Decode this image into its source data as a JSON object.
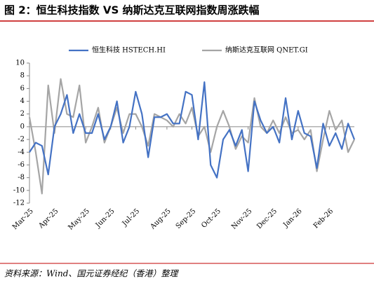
{
  "chart_data": {
    "type": "line",
    "title": "图 2：恒生科技指数 VS 纳斯达克互联网指数周涨跌幅",
    "source": "资料来源：Wind、国元证券经纪（香港）整理",
    "categories": [
      "Mar-25",
      null,
      null,
      null,
      "Apr-25",
      null,
      null,
      null,
      null,
      "May-25",
      null,
      null,
      null,
      "Jun-25",
      null,
      null,
      null,
      "Jul-25",
      null,
      null,
      null,
      null,
      "Aug-25",
      null,
      null,
      null,
      "Sep-25",
      null,
      null,
      null,
      "Oct-25",
      null,
      null,
      null,
      null,
      "Nov-25",
      null,
      null,
      null,
      "Dec-25",
      null,
      null,
      null,
      "Jan-26",
      null,
      null,
      null,
      null,
      "Feb-26",
      null,
      null,
      null,
      null
    ],
    "series": [
      {
        "name": "恒生科技 HSTECH.HI",
        "color": "#4472c4",
        "values": [
          -4,
          -2.5,
          -3,
          -7.5,
          0,
          2,
          5,
          -1,
          2,
          -1,
          -1,
          2,
          -2,
          0,
          4,
          -2.5,
          0,
          5.5,
          2,
          -4.8,
          1.5,
          1.5,
          2,
          0.5,
          0.5,
          5.5,
          5,
          -2,
          7,
          -6,
          -8,
          -2,
          -0.5,
          -3,
          -0.5,
          -7,
          4,
          1,
          -1,
          0,
          -2.5,
          4.5,
          -2,
          2.5,
          -1,
          -1.5,
          -6.5,
          0.5,
          -3,
          -1,
          -3.5,
          0.5,
          -2
        ]
      },
      {
        "name": "纳斯达克互联网 QNET.GI",
        "color": "#a5a5a5",
        "values": [
          1.5,
          -4,
          -10.5,
          6.5,
          -1,
          7.5,
          2,
          1.5,
          6.5,
          -2.5,
          0,
          3,
          -2.5,
          0,
          3,
          -1,
          2,
          2,
          0,
          -3,
          2,
          1.5,
          1,
          0,
          2,
          0.5,
          3,
          -1.5,
          0,
          -4,
          0,
          2.5,
          0,
          -3.5,
          -1.5,
          -2.5,
          4.5,
          0,
          -1,
          1,
          -1,
          1.5,
          -1,
          -0.5,
          -2,
          -0.5,
          -7,
          -2,
          2.5,
          -0.5,
          1,
          -4,
          -2
        ]
      }
    ],
    "ylim": [
      -12,
      10
    ],
    "yticks": [
      -12,
      -10,
      -8,
      -6,
      -4,
      -2,
      0,
      2,
      4,
      6,
      8,
      10
    ],
    "legend": "top"
  }
}
